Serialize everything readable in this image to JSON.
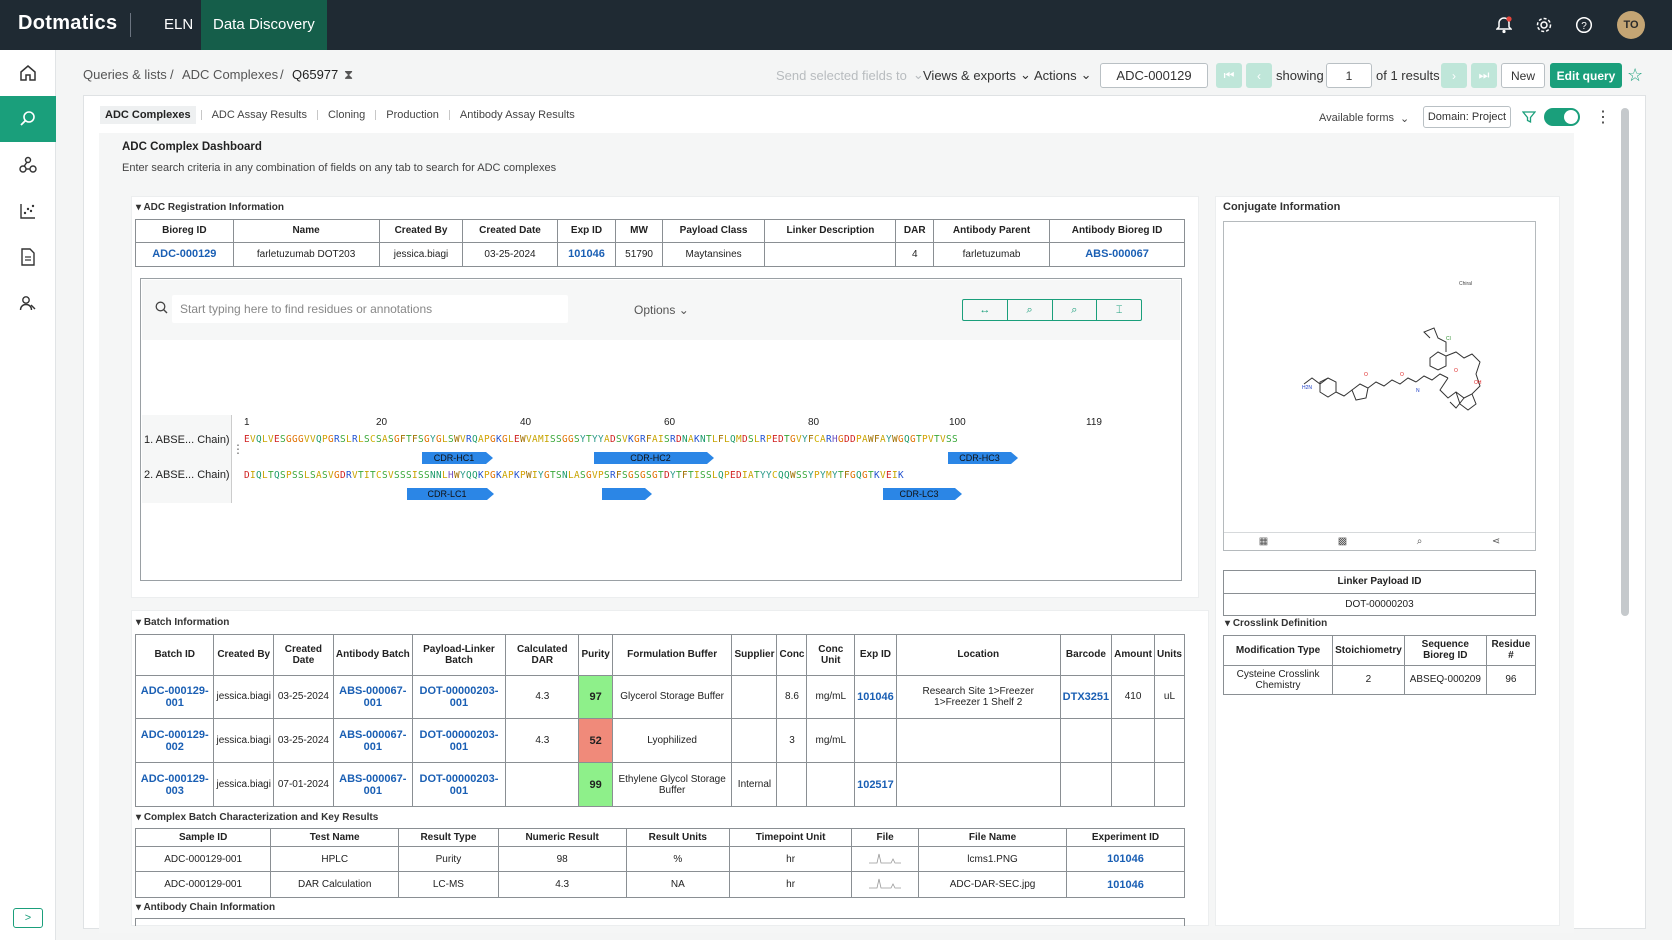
{
  "app": {
    "logo": "Dotmatics",
    "nav_eln": "ELN",
    "nav_discovery": "Data Discovery",
    "avatar": "TO"
  },
  "breadcrumb": {
    "root": "Queries & lists",
    "section": "ADC Complexes",
    "current": "Q65977"
  },
  "toolbar": {
    "send": "Send selected fields to",
    "views": "Views & exports",
    "actions": "Actions",
    "record": "ADC-000129",
    "showing": "showing",
    "page": "1",
    "of_results": "of 1 results",
    "new": "New",
    "edit_query": "Edit query"
  },
  "tabs": [
    "ADC Complexes",
    "ADC Assay Results",
    "Cloning",
    "Production",
    "Antibody Assay Results"
  ],
  "form_controls": {
    "available_forms": "Available forms",
    "domain": "Domain: Project"
  },
  "dashboard": {
    "title": "ADC Complex Dashboard",
    "subtitle": "Enter search criteria in any combination of fields on any tab to search for ADC complexes"
  },
  "registration": {
    "section": "ADC Registration Information",
    "headers": [
      "Bioreg ID",
      "Name",
      "Created By",
      "Created Date",
      "Exp ID",
      "MW",
      "Payload Class",
      "Linker Description",
      "DAR",
      "Antibody Parent",
      "Antibody Bioreg ID"
    ],
    "row": {
      "bioreg_id": "ADC-000129",
      "name": "farletuzumab DOT203",
      "created_by": "jessica.biagi",
      "created_date": "03-25-2024",
      "exp_id": "101046",
      "mw": "51790",
      "payload_class": "Maytansines",
      "linker_desc": "",
      "dar": "4",
      "antibody_parent": "farletuzumab",
      "antibody_bioreg": "ABS-000067"
    }
  },
  "sequence": {
    "search_placeholder": "Start typing here to find residues or annotations",
    "options": "Options",
    "ticks": [
      "1",
      "20",
      "40",
      "60",
      "80",
      "100",
      "119"
    ],
    "chains": [
      {
        "label": "1. ABSE... Chain)",
        "seq": "EVQLVESGGGVVQPGRSLRLSCSASGFTFSGYGLSWVRQAPGKGLEWVAMISSGGSYTYYADSVKGRFAISRDNAKNTLFLQMDSLRPEDTGVYFCARHGDDPAWFAYWGQGTPVTVSS"
      },
      {
        "label": "2. ABSE... Chain)",
        "seq": "DIQLTQSPSSLSASVGDRVTITCSVSSSISSNNLHWYQQKPGKAPKPWIYGTSNLASGVPSRFSGSGSGTDYTFTISSLQPEDIATYYCQQWSSYPYMYTFGQGTKVEIK"
      }
    ],
    "annotations": [
      "CDR-HC1",
      "CDR-HC2",
      "CDR-HC3",
      "CDR-LC1",
      "",
      "CDR-LC3"
    ]
  },
  "conjugate": {
    "title": "Conjugate Information",
    "linker_payload_header": "Linker Payload ID",
    "linker_payload": "DOT-00000203",
    "crosslink_section": "Crosslink Definition",
    "crosslink_headers": [
      "Modification Type",
      "Stoichiometry",
      "Sequence Bioreg ID",
      "Residue #"
    ],
    "crosslink_row": [
      "Cysteine Crosslink Chemistry",
      "2",
      "ABSEQ-000209",
      "96"
    ]
  },
  "batch": {
    "section": "Batch Information",
    "headers": [
      "Batch ID",
      "Created By",
      "Created Date",
      "Antibody Batch",
      "Payload-Linker Batch",
      "Calculated DAR",
      "Purity",
      "Formulation Buffer",
      "Supplier",
      "Conc",
      "Conc Unit",
      "Exp ID",
      "Location",
      "Barcode",
      "Amount",
      "Units"
    ],
    "rows": [
      [
        "ADC-000129-001",
        "jessica.biagi",
        "03-25-2024",
        "ABS-000067-001",
        "DOT-00000203-001",
        "4.3",
        "97",
        "Glycerol Storage Buffer",
        "",
        "8.6",
        "mg/mL",
        "101046",
        "Research Site 1>Freezer 1>Freezer 1 Shelf 2",
        "DTX3251",
        "410",
        "uL"
      ],
      [
        "ADC-000129-002",
        "jessica.biagi",
        "03-25-2024",
        "ABS-000067-001",
        "DOT-00000203-001",
        "4.3",
        "52",
        "Lyophilized",
        "",
        "3",
        "mg/mL",
        "",
        "",
        "",
        "",
        ""
      ],
      [
        "ADC-000129-003",
        "jessica.biagi",
        "07-01-2024",
        "ABS-000067-001",
        "DOT-00000203-001",
        "",
        "99",
        "Ethylene Glycol Storage Buffer",
        "Internal",
        "",
        "",
        "102517",
        "",
        "",
        "",
        ""
      ]
    ],
    "purity_colors": [
      "#8ef08a",
      "#f08a7a",
      "#8ef08a"
    ]
  },
  "characterization": {
    "section": "Complex Batch Characterization and Key Results",
    "headers": [
      "Sample ID",
      "Test Name",
      "Result Type",
      "Numeric Result",
      "Result Units",
      "Timepoint Unit",
      "File",
      "File Name",
      "Experiment ID"
    ],
    "rows": [
      [
        "ADC-000129-001",
        "HPLC",
        "Purity",
        "98",
        "%",
        "hr",
        "",
        "lcms1.PNG",
        "101046"
      ],
      [
        "ADC-000129-001",
        "DAR Calculation",
        "LC-MS",
        "4.3",
        "NA",
        "hr",
        "",
        "ADC-DAR-SEC.jpg",
        "101046"
      ]
    ]
  },
  "antibody_chain": {
    "section": "Antibody Chain Information"
  },
  "colors": {
    "topbar": "#1f2a33",
    "accent": "#1a9f7b",
    "active_nav": "#155e4a"
  }
}
